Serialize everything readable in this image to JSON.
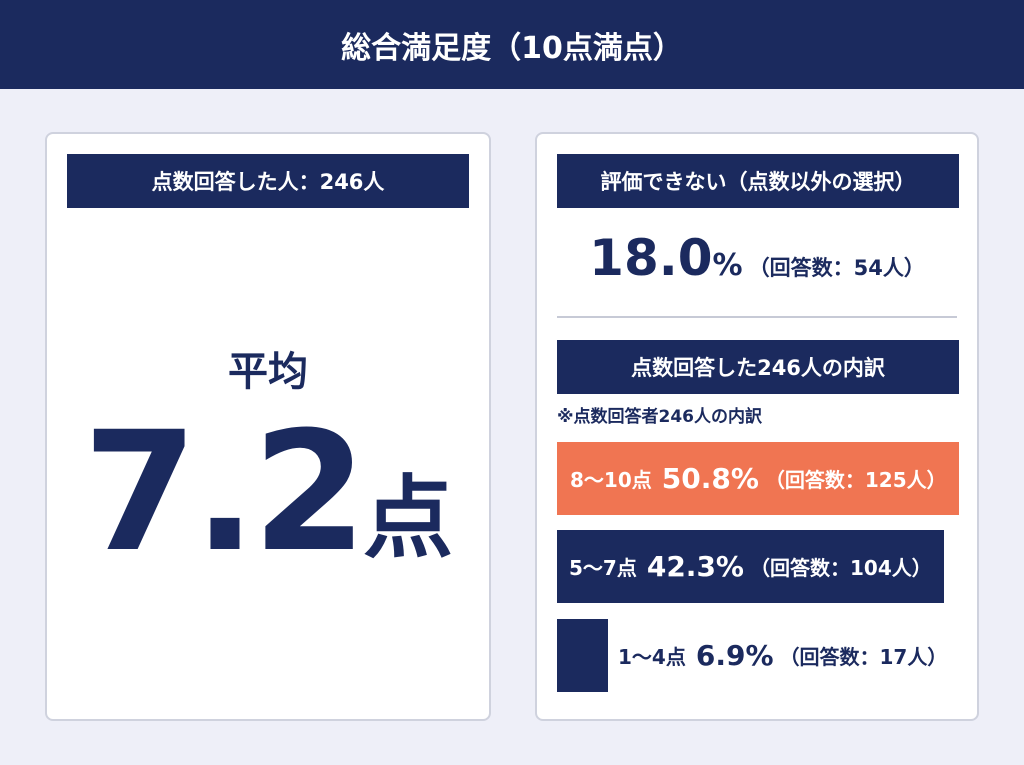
{
  "header": {
    "title": "総合満足度（10点満点）"
  },
  "left": {
    "label": "点数回答した人：246人",
    "avg_label": "平均",
    "avg_value": "7.2",
    "avg_unit": "点"
  },
  "right": {
    "label": "評価できない（点数以外の選択）",
    "pct_value": "18.0",
    "pct_sign": "%",
    "pct_count": "（回答数：54人）",
    "breakdown_label": "点数回答した246人の内訳",
    "note": "※点数回答者246人の内訳"
  },
  "colors": {
    "navy": "#1b2a5e",
    "highlight": "#f07552"
  },
  "chart_data": {
    "type": "bar",
    "orientation": "horizontal",
    "categories": [
      "8〜10点",
      "5〜7点",
      "1〜4点"
    ],
    "values": [
      50.8,
      42.3,
      6.9
    ],
    "counts": [
      125,
      104,
      17
    ],
    "labels": [
      {
        "cat": "8〜10点",
        "pct": "50.8%",
        "count": "（回答数：125人）"
      },
      {
        "cat": "5〜7点",
        "pct": "42.3%",
        "count": "（回答数：104人）"
      },
      {
        "cat": "1〜4点",
        "pct": "6.9%",
        "count": "（回答数：17人）"
      }
    ],
    "bar_colors": [
      "#f07552",
      "#1b2a5e",
      "#1b2a5e"
    ]
  }
}
